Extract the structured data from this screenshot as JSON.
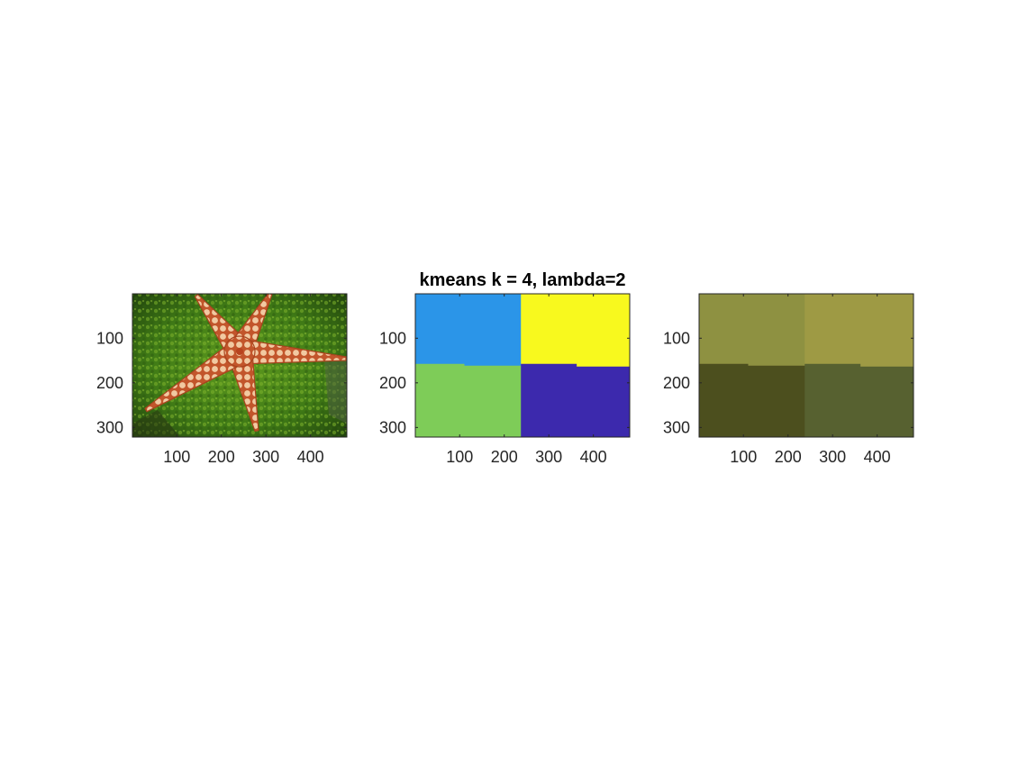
{
  "chart_data": [
    {
      "type": "image",
      "title": "",
      "image": "starfish-photo",
      "xlim": [
        0.5,
        481.5
      ],
      "ylim": [
        0.5,
        321.5
      ],
      "xticks": [
        100,
        200,
        300,
        400
      ],
      "yticks": [
        100,
        200,
        300
      ],
      "ydir": "reverse"
    },
    {
      "type": "heatmap",
      "title": "kmeans k = 4, lambda=2",
      "xlim": [
        0.5,
        481.5
      ],
      "ylim": [
        0.5,
        321.5
      ],
      "xticks": [
        100,
        200,
        300,
        400
      ],
      "yticks": [
        100,
        200,
        300
      ],
      "ydir": "reverse",
      "regions": [
        {
          "cluster": 1,
          "color": "#2B95E8",
          "polygon": [
            [
              0.5,
              0.5
            ],
            [
              238,
              0.5
            ],
            [
              238,
              162
            ],
            [
              110,
              162
            ],
            [
              110,
              158
            ],
            [
              0.5,
              158
            ]
          ]
        },
        {
          "cluster": 2,
          "color": "#F8F91E",
          "polygon": [
            [
              238,
              0.5
            ],
            [
              481.5,
              0.5
            ],
            [
              481.5,
              164
            ],
            [
              362,
              164
            ],
            [
              362,
              158
            ],
            [
              238,
              158
            ]
          ]
        },
        {
          "cluster": 3,
          "color": "#7ECC58",
          "polygon": [
            [
              0.5,
              158
            ],
            [
              110,
              158
            ],
            [
              110,
              162
            ],
            [
              238,
              162
            ],
            [
              238,
              321.5
            ],
            [
              0.5,
              321.5
            ]
          ]
        },
        {
          "cluster": 4,
          "color": "#3C29AD",
          "polygon": [
            [
              238,
              158
            ],
            [
              362,
              158
            ],
            [
              362,
              164
            ],
            [
              481.5,
              164
            ],
            [
              481.5,
              321.5
            ],
            [
              238,
              321.5
            ]
          ]
        }
      ]
    },
    {
      "type": "heatmap",
      "title": "",
      "xlim": [
        0.5,
        481.5
      ],
      "ylim": [
        0.5,
        321.5
      ],
      "xticks": [
        100,
        200,
        300,
        400
      ],
      "yticks": [
        100,
        200,
        300
      ],
      "ydir": "reverse",
      "regions": [
        {
          "cluster": 1,
          "color": "#8E9141",
          "polygon": [
            [
              0.5,
              0.5
            ],
            [
              238,
              0.5
            ],
            [
              238,
              162
            ],
            [
              110,
              162
            ],
            [
              110,
              158
            ],
            [
              0.5,
              158
            ]
          ]
        },
        {
          "cluster": 2,
          "color": "#9E9A44",
          "polygon": [
            [
              238,
              0.5
            ],
            [
              481.5,
              0.5
            ],
            [
              481.5,
              164
            ],
            [
              362,
              164
            ],
            [
              362,
              158
            ],
            [
              238,
              158
            ]
          ]
        },
        {
          "cluster": 3,
          "color": "#4C4F1E",
          "polygon": [
            [
              0.5,
              158
            ],
            [
              110,
              158
            ],
            [
              110,
              162
            ],
            [
              238,
              162
            ],
            [
              238,
              321.5
            ],
            [
              0.5,
              321.5
            ]
          ]
        },
        {
          "cluster": 4,
          "color": "#576130",
          "polygon": [
            [
              238,
              158
            ],
            [
              362,
              158
            ],
            [
              362,
              164
            ],
            [
              481.5,
              164
            ],
            [
              481.5,
              321.5
            ],
            [
              238,
              321.5
            ]
          ]
        }
      ]
    }
  ]
}
